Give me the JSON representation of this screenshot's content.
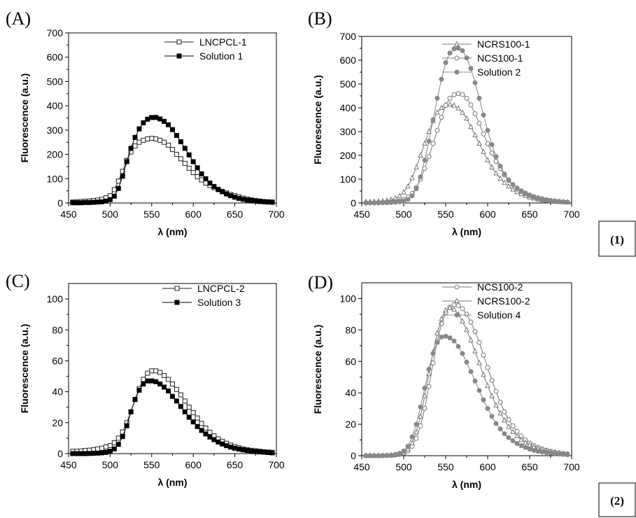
{
  "figure": {
    "group_labels": [
      "(1)",
      "(2)"
    ]
  },
  "chart_data": [
    {
      "type": "line",
      "panel": "(A)",
      "xlabel": "λ (nm)",
      "ylabel": "Fluorescence (a.u.)",
      "xlim": [
        450,
        700
      ],
      "ylim": [
        0,
        700
      ],
      "xticks": [
        450,
        500,
        550,
        600,
        650,
        700
      ],
      "yticks": [
        0,
        100,
        200,
        300,
        400,
        500,
        600,
        700
      ],
      "legend_position": "top-right",
      "grid": false,
      "x": [
        455,
        460,
        465,
        470,
        475,
        480,
        485,
        490,
        495,
        500,
        505,
        510,
        515,
        520,
        525,
        530,
        535,
        540,
        545,
        550,
        555,
        560,
        565,
        570,
        575,
        580,
        585,
        590,
        595,
        600,
        605,
        610,
        615,
        620,
        625,
        630,
        635,
        640,
        645,
        650,
        655,
        660,
        665,
        670,
        675,
        680,
        685,
        690,
        695
      ],
      "series": [
        {
          "name": "LNCPCL-1",
          "marker": "square-open",
          "color": "#222222",
          "values": [
            4,
            5,
            6,
            7,
            8,
            10,
            12,
            15,
            22,
            30,
            55,
            90,
            130,
            175,
            210,
            235,
            250,
            258,
            264,
            266,
            264,
            258,
            250,
            238,
            220,
            200,
            182,
            163,
            143,
            125,
            108,
            95,
            82,
            72,
            63,
            55,
            48,
            41,
            35,
            30,
            25,
            20,
            16,
            13,
            10,
            8,
            6,
            5,
            4
          ]
        },
        {
          "name": "Solution 1",
          "marker": "square-filled",
          "color": "#000000",
          "values": [
            1,
            1,
            1,
            2,
            2,
            3,
            4,
            5,
            8,
            14,
            28,
            60,
            110,
            170,
            225,
            270,
            305,
            330,
            345,
            352,
            352,
            346,
            336,
            322,
            302,
            278,
            252,
            225,
            198,
            170,
            145,
            120,
            100,
            82,
            68,
            56,
            46,
            37,
            30,
            24,
            19,
            15,
            12,
            10,
            8,
            6,
            5,
            4,
            3
          ]
        }
      ]
    },
    {
      "type": "line",
      "panel": "(B)",
      "xlabel": "λ (nm)",
      "ylabel": "Fluorescence (a.u.)",
      "xlim": [
        450,
        700
      ],
      "ylim": [
        0,
        700
      ],
      "xticks": [
        450,
        500,
        550,
        600,
        650,
        700
      ],
      "yticks": [
        0,
        100,
        200,
        300,
        400,
        500,
        600,
        700
      ],
      "legend_position": "top-right",
      "grid": false,
      "x": [
        455,
        460,
        465,
        470,
        475,
        480,
        485,
        490,
        495,
        500,
        505,
        510,
        515,
        520,
        525,
        530,
        535,
        540,
        545,
        550,
        555,
        560,
        565,
        570,
        575,
        580,
        585,
        590,
        595,
        600,
        605,
        610,
        615,
        620,
        625,
        630,
        635,
        640,
        645,
        650,
        655,
        660,
        665,
        670,
        675,
        680,
        685,
        690,
        695
      ],
      "series": [
        {
          "name": "NCRS100-1",
          "marker": "triangle-open",
          "color": "#777777",
          "values": [
            5,
            5,
            6,
            7,
            8,
            10,
            14,
            20,
            30,
            45,
            70,
            105,
            150,
            200,
            250,
            300,
            345,
            380,
            400,
            412,
            414,
            410,
            398,
            380,
            355,
            320,
            285,
            250,
            215,
            180,
            150,
            125,
            103,
            85,
            70,
            57,
            46,
            37,
            30,
            24,
            19,
            15,
            12,
            10,
            8,
            6,
            5,
            4,
            3
          ]
        },
        {
          "name": "NCS100-1",
          "marker": "circle-open",
          "color": "#777777",
          "values": [
            1,
            1,
            1,
            2,
            2,
            3,
            4,
            6,
            9,
            14,
            25,
            40,
            65,
            100,
            145,
            195,
            250,
            305,
            360,
            410,
            440,
            455,
            460,
            456,
            440,
            412,
            375,
            335,
            290,
            250,
            210,
            175,
            145,
            118,
            95,
            77,
            62,
            50,
            40,
            32,
            25,
            20,
            16,
            13,
            10,
            8,
            6,
            5,
            4
          ]
        },
        {
          "name": "Solution 2",
          "marker": "circle-filled",
          "color": "#888888",
          "values": [
            0,
            0,
            0,
            0,
            1,
            1,
            2,
            3,
            5,
            8,
            15,
            30,
            60,
            110,
            180,
            260,
            350,
            440,
            520,
            590,
            630,
            648,
            650,
            640,
            610,
            565,
            505,
            440,
            370,
            305,
            245,
            195,
            155,
            122,
            97,
            78,
            63,
            51,
            42,
            34,
            27,
            22,
            18,
            14,
            11,
            9,
            7,
            5,
            4
          ]
        }
      ]
    },
    {
      "type": "line",
      "panel": "(C)",
      "xlabel": "λ (nm)",
      "ylabel": "Fluorescence (a.u.)",
      "xlim": [
        450,
        700
      ],
      "ylim": [
        0,
        110
      ],
      "xticks": [
        450,
        500,
        550,
        600,
        650,
        700
      ],
      "yticks": [
        0,
        20,
        40,
        60,
        80,
        100
      ],
      "legend_position": "top-right",
      "grid": false,
      "x": [
        455,
        460,
        465,
        470,
        475,
        480,
        485,
        490,
        495,
        500,
        505,
        510,
        515,
        520,
        525,
        530,
        535,
        540,
        545,
        550,
        555,
        560,
        565,
        570,
        575,
        580,
        585,
        590,
        595,
        600,
        605,
        610,
        615,
        620,
        625,
        630,
        635,
        640,
        645,
        650,
        655,
        660,
        665,
        670,
        675,
        680,
        685,
        690,
        695
      ],
      "series": [
        {
          "name": "LNCPCL-2",
          "marker": "square-open",
          "color": "#222222",
          "values": [
            1.5,
            1.5,
            1.7,
            2,
            2.2,
            2.5,
            3,
            3.5,
            4.3,
            5.2,
            7,
            10,
            14,
            20,
            27,
            35,
            42,
            48,
            52,
            53.5,
            53.5,
            52.5,
            50.5,
            48,
            45,
            41.5,
            38,
            34,
            30,
            26.5,
            23,
            19.5,
            16.5,
            13.8,
            11.5,
            9.5,
            8,
            6.7,
            5.5,
            4.5,
            3.7,
            3,
            2.5,
            2.1,
            1.8,
            1.5,
            1.2,
            1,
            0.8
          ]
        },
        {
          "name": "Solution 3",
          "marker": "square-filled",
          "color": "#000000",
          "values": [
            0,
            0,
            0,
            0,
            0.1,
            0.2,
            0.3,
            0.5,
            0.8,
            1.5,
            3,
            6,
            11,
            18,
            27,
            35,
            41,
            45,
            47,
            47,
            46.5,
            45,
            43,
            40.5,
            37,
            34,
            30.5,
            27,
            23.5,
            20.5,
            17.5,
            15,
            12.7,
            10.7,
            9,
            7.5,
            6.2,
            5.1,
            4.2,
            3.5,
            2.9,
            2.4,
            2,
            1.6,
            1.3,
            1.1,
            0.9,
            0.7,
            0.5
          ]
        }
      ]
    },
    {
      "type": "line",
      "panel": "(D)",
      "xlabel": "λ (nm)",
      "ylabel": "Fluorescence (a.u.)",
      "xlim": [
        450,
        700
      ],
      "ylim": [
        0,
        110
      ],
      "xticks": [
        450,
        500,
        550,
        600,
        650,
        700
      ],
      "yticks": [
        0,
        20,
        40,
        60,
        80,
        100
      ],
      "legend_position": "top-right",
      "grid": false,
      "x": [
        455,
        460,
        465,
        470,
        475,
        480,
        485,
        490,
        495,
        500,
        505,
        510,
        515,
        520,
        525,
        530,
        535,
        540,
        545,
        550,
        555,
        560,
        565,
        570,
        575,
        580,
        585,
        590,
        595,
        600,
        605,
        610,
        615,
        620,
        625,
        630,
        635,
        640,
        645,
        650,
        655,
        660,
        665,
        670,
        675,
        680,
        685,
        690,
        695
      ],
      "series": [
        {
          "name": "NCS100-2",
          "marker": "circle-open",
          "color": "#777777",
          "values": [
            0,
            0,
            0,
            0,
            0,
            0.1,
            0.2,
            0.4,
            0.8,
            1.5,
            3,
            6,
            11,
            19,
            30,
            44,
            59,
            73,
            84,
            91,
            94.5,
            96,
            95.5,
            93.5,
            90,
            85,
            79,
            72,
            64,
            56,
            48,
            41,
            34,
            28,
            23,
            19,
            15.5,
            12.5,
            10,
            8,
            6.5,
            5.3,
            4.3,
            3.5,
            2.8,
            2.3,
            1.8,
            1.4,
            1.1
          ]
        },
        {
          "name": "NCRS100-2",
          "marker": "triangle-open",
          "color": "#777777",
          "values": [
            0,
            0,
            0,
            0,
            0.1,
            0.2,
            0.3,
            0.6,
            1.1,
            2,
            4,
            8,
            15,
            25,
            38,
            52,
            66,
            78,
            87,
            92.5,
            94,
            93,
            90,
            85.5,
            80,
            73.5,
            66.5,
            59,
            51.5,
            44.5,
            38,
            32,
            27,
            22.5,
            18.5,
            15.2,
            12.5,
            10.2,
            8.3,
            6.8,
            5.5,
            4.5,
            3.7,
            3,
            2.4,
            2,
            1.6,
            1.3,
            1
          ]
        },
        {
          "name": "Solution 4",
          "marker": "circle-filled",
          "color": "#888888",
          "values": [
            0,
            0,
            0,
            0,
            0.1,
            0.2,
            0.4,
            0.8,
            1.5,
            3,
            6,
            12,
            20,
            31,
            43,
            55,
            65,
            72,
            75.5,
            76,
            75,
            73,
            69.5,
            65,
            59.5,
            53.5,
            47.5,
            41.5,
            35.5,
            30,
            25,
            20.5,
            17,
            14,
            11.5,
            9.5,
            7.8,
            6.4,
            5.2,
            4.2,
            3.4,
            2.8,
            2.3,
            1.9,
            1.6,
            1.3,
            1,
            0.8,
            0.6
          ]
        }
      ]
    }
  ]
}
